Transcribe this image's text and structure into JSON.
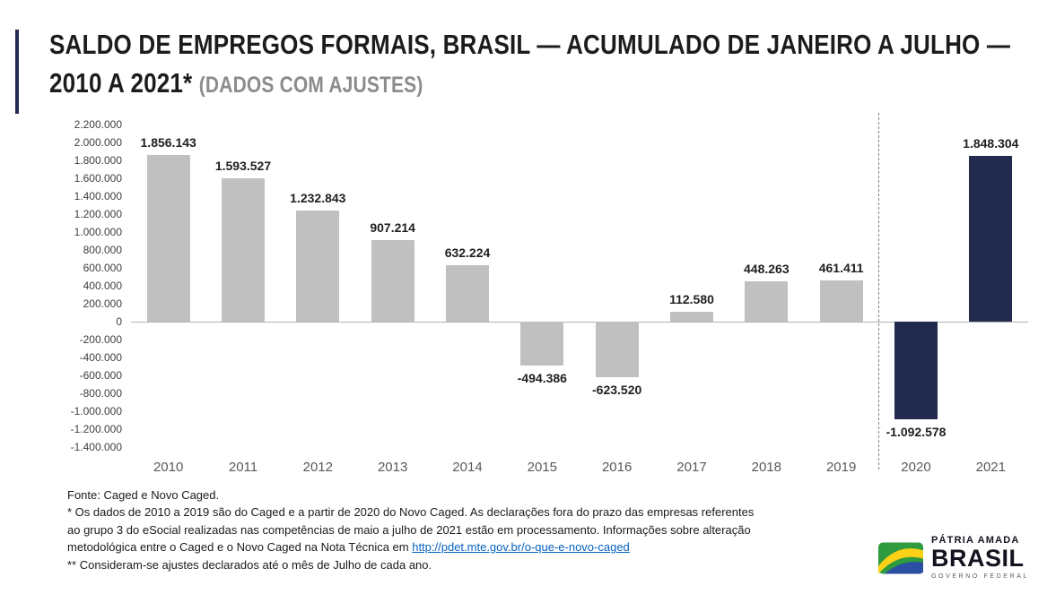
{
  "header": {
    "title": "SALDO DE EMPREGOS FORMAIS, BRASIL — ACUMULADO DE JANEIRO A JULHO — 2010 A 2021* ",
    "subtitle": "(DADOS COM AJUSTES)"
  },
  "chart_data": {
    "type": "bar",
    "title": "SALDO DE EMPREGOS FORMAIS, BRASIL — ACUMULADO DE JANEIRO A JULHO — 2010 A 2021* (DADOS COM AJUSTES)",
    "categories": [
      "2010",
      "2011",
      "2012",
      "2013",
      "2014",
      "2015",
      "2016",
      "2017",
      "2018",
      "2019",
      "2020",
      "2021"
    ],
    "values": [
      1856143,
      1593527,
      1232843,
      907214,
      632224,
      -494386,
      -623520,
      112580,
      448263,
      461411,
      -1092578,
      1848304
    ],
    "labels": [
      "1.856.143",
      "1.593.527",
      "1.232.843",
      "907.214",
      "632.224",
      "-494.386",
      "-623.520",
      "112.580",
      "448.263",
      "461.411",
      "-1.092.578",
      "1.848.304"
    ],
    "yticks": [
      "2.200.000",
      "2.000.000",
      "1.800.000",
      "1.600.000",
      "1.400.000",
      "1.200.000",
      "1.000.000",
      "800.000",
      "600.000",
      "400.000",
      "200.000",
      "0",
      "-200.000",
      "-400.000",
      "-600.000",
      "-800.000",
      "-1.000.000",
      "-1.200.000",
      "-1.400.000"
    ],
    "ylim": [
      -1400000,
      2200000
    ],
    "xlabel": "",
    "ylabel": "",
    "grid": false,
    "legend": null,
    "bar_colors": {
      "default": "#c0c0c0",
      "highlight": "#222a4e"
    },
    "highlight_categories": [
      "2020",
      "2021"
    ],
    "separator_after": "2019"
  },
  "footer": {
    "source": "Fonte: Caged e Novo Caged.",
    "note1_text": "* Os dados de 2010 a 2019 são do Caged e a partir de 2020 do Novo Caged. As declarações fora do prazo das empresas referentes ao grupo 3 do eSocial realizadas nas competências de maio a julho de 2021 estão em processamento. Informações sobre alteração metodológica entre o Caged e o Novo Caged na Nota Técnica em ",
    "note1_link": "http://pdet.mte.gov.br/o-que-e-novo-caged",
    "note2": "** Consideram-se ajustes declarados até o mês de Julho de cada ano."
  },
  "logo": {
    "line1": "PÁTRIA AMADA",
    "line2": "BRASIL",
    "line3": "GOVERNO FEDERAL"
  }
}
